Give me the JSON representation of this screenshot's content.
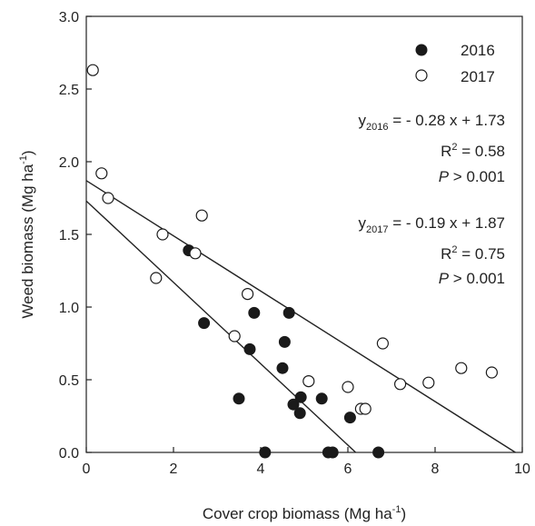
{
  "chart_data": {
    "type": "scatter",
    "xlabel": "Cover crop biomass (Mg ha",
    "xlabel_sup": "-1",
    "xlabel_close": ")",
    "ylabel": "Weed biomass (Mg ha",
    "ylabel_sup": "-1",
    "ylabel_close": ")",
    "xlim": [
      0,
      10
    ],
    "ylim": [
      0,
      3.0
    ],
    "x_ticks": [
      0,
      2,
      4,
      6,
      8,
      10
    ],
    "x_tick_labels": [
      "0",
      "2",
      "4",
      "6",
      "8",
      "10"
    ],
    "y_ticks": [
      0,
      0.5,
      1.0,
      1.5,
      2.0,
      2.5,
      3.0
    ],
    "y_tick_labels": [
      "0.0",
      "0.5",
      "1.0",
      "1.5",
      "2.0",
      "2.5",
      "3.0"
    ],
    "grid": false,
    "legend_position": "top-right",
    "series": [
      {
        "name": "2016",
        "marker": "filled-circle",
        "color": "#1a1a1a",
        "points": [
          [
            2.35,
            1.39
          ],
          [
            2.7,
            0.89
          ],
          [
            3.5,
            0.37
          ],
          [
            3.75,
            0.71
          ],
          [
            3.85,
            0.96
          ],
          [
            4.1,
            0.0
          ],
          [
            4.5,
            0.58
          ],
          [
            4.55,
            0.76
          ],
          [
            4.65,
            0.96
          ],
          [
            4.75,
            0.33
          ],
          [
            4.9,
            0.27
          ],
          [
            4.92,
            0.38
          ],
          [
            5.4,
            0.37
          ],
          [
            5.55,
            0.0
          ],
          [
            5.65,
            0.0
          ],
          [
            6.05,
            0.24
          ],
          [
            6.7,
            0.0
          ]
        ],
        "fit": {
          "slope": -0.28,
          "intercept": 1.73
        }
      },
      {
        "name": "2017",
        "marker": "open-circle",
        "color": "#1a1a1a",
        "points": [
          [
            0.15,
            2.63
          ],
          [
            0.35,
            1.92
          ],
          [
            0.5,
            1.75
          ],
          [
            1.6,
            1.2
          ],
          [
            1.75,
            1.5
          ],
          [
            2.5,
            1.37
          ],
          [
            2.65,
            1.63
          ],
          [
            3.4,
            0.8
          ],
          [
            3.7,
            1.09
          ],
          [
            5.1,
            0.49
          ],
          [
            6.0,
            0.45
          ],
          [
            6.3,
            0.3
          ],
          [
            6.4,
            0.3
          ],
          [
            6.8,
            0.75
          ],
          [
            7.2,
            0.47
          ],
          [
            7.85,
            0.48
          ],
          [
            8.6,
            0.58
          ],
          [
            9.3,
            0.55
          ]
        ],
        "fit": {
          "slope": -0.19,
          "intercept": 1.87
        }
      }
    ],
    "annotations": {
      "eq2016": {
        "y_sym": "y",
        "sub": "2016",
        "rhs": " = - 0.28 x + 1.73"
      },
      "r2_2016": {
        "r": "R",
        "sup": "2",
        "rhs": " = 0.58"
      },
      "p2016": {
        "p": "P",
        "rhs": " > 0.001"
      },
      "eq2017": {
        "y_sym": "y",
        "sub": "2017",
        "rhs": " = - 0.19 x + 1.87"
      },
      "r2_2017": {
        "r": "R",
        "sup": "2",
        "rhs": " = 0.75"
      },
      "p2017": {
        "p": "P",
        "rhs": " > 0.001"
      }
    }
  }
}
